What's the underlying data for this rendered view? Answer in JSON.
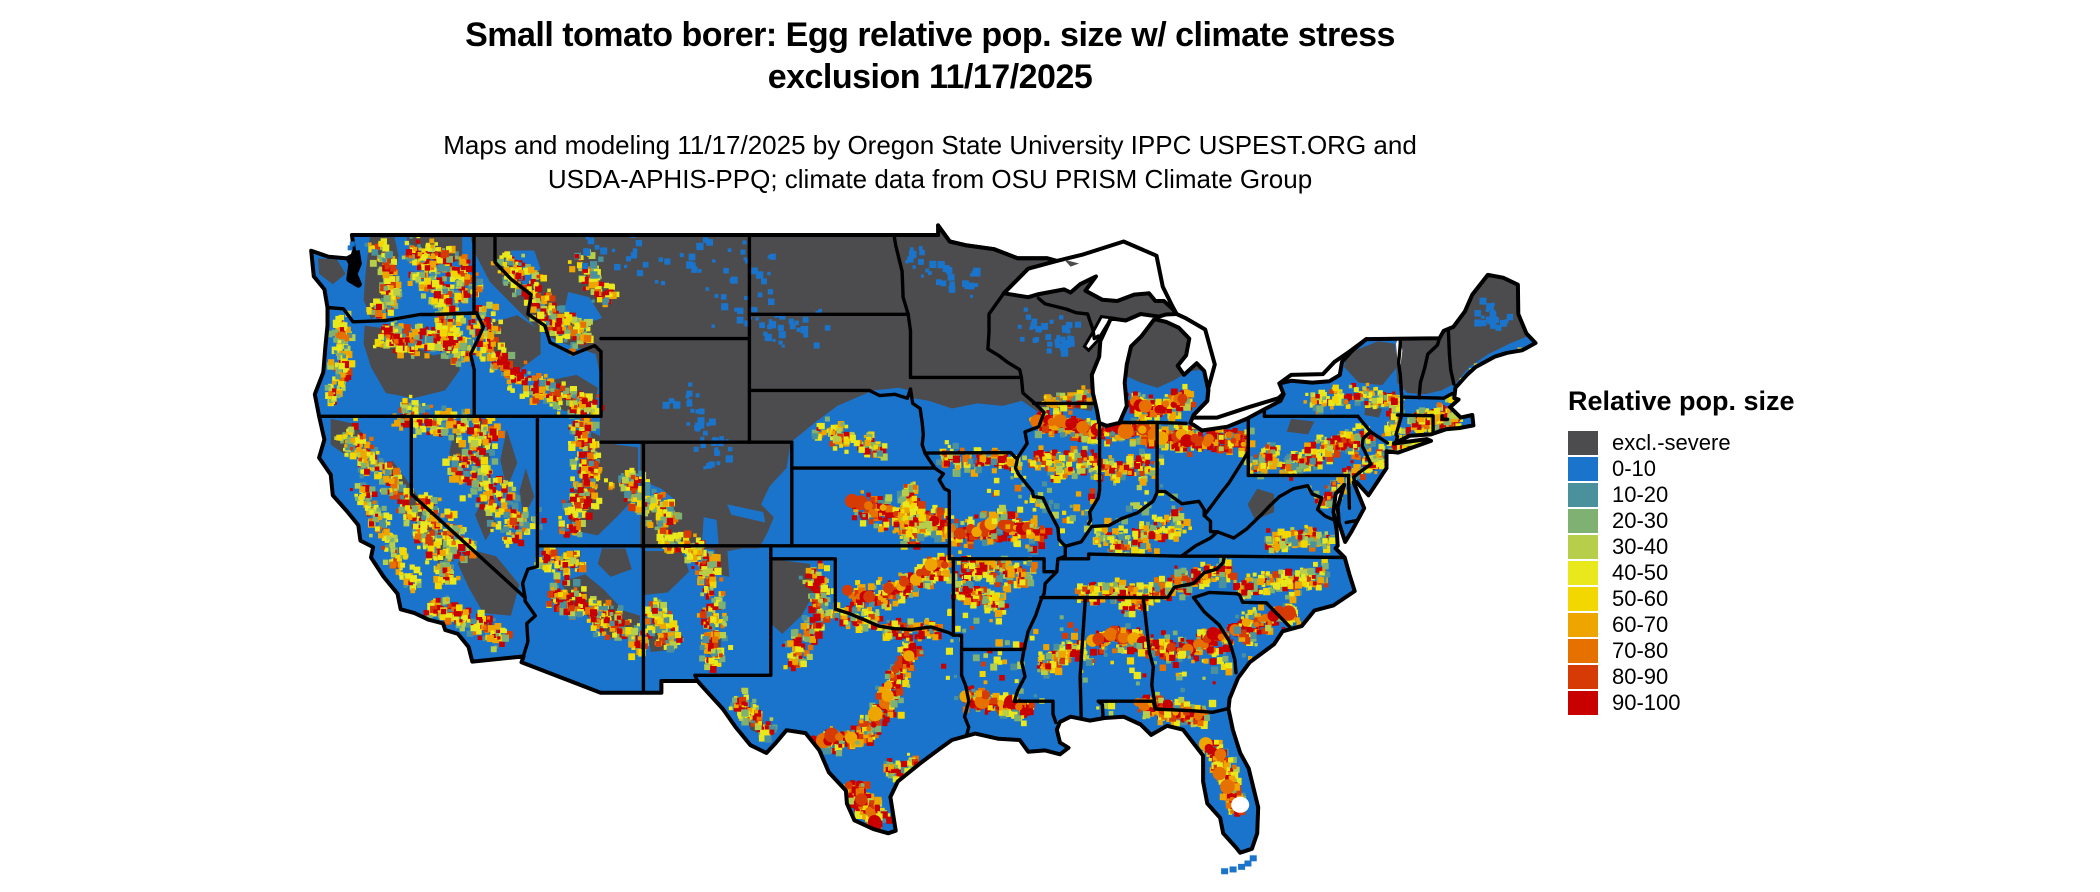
{
  "header": {
    "title_line1": "Small tomato borer: Egg relative pop. size w/ climate stress",
    "title_line2": "exclusion 11/17/2025",
    "subtitle_line1": "Maps and modeling 11/17/2025 by Oregon State University IPPC USPEST.ORG and",
    "subtitle_line2": "USDA-APHIS-PPQ; climate data from OSU PRISM Climate Group"
  },
  "legend": {
    "title": "Relative pop. size",
    "items": [
      {
        "label": "excl.-severe",
        "color": "#4C4C4E"
      },
      {
        "label": "0-10",
        "color": "#1B74CC"
      },
      {
        "label": "10-20",
        "color": "#4A919D"
      },
      {
        "label": "20-30",
        "color": "#7FB173"
      },
      {
        "label": "30-40",
        "color": "#B6CE4A"
      },
      {
        "label": "40-50",
        "color": "#E8E81C"
      },
      {
        "label": "50-60",
        "color": "#F2D800"
      },
      {
        "label": "60-70",
        "color": "#EEA500"
      },
      {
        "label": "70-80",
        "color": "#E67000"
      },
      {
        "label": "80-90",
        "color": "#D63A05"
      },
      {
        "label": "90-100",
        "color": "#C80000"
      }
    ]
  },
  "map": {
    "region": "Contiguous United States",
    "water_color": "#FFFFFF",
    "boundary_color": "#000000"
  }
}
